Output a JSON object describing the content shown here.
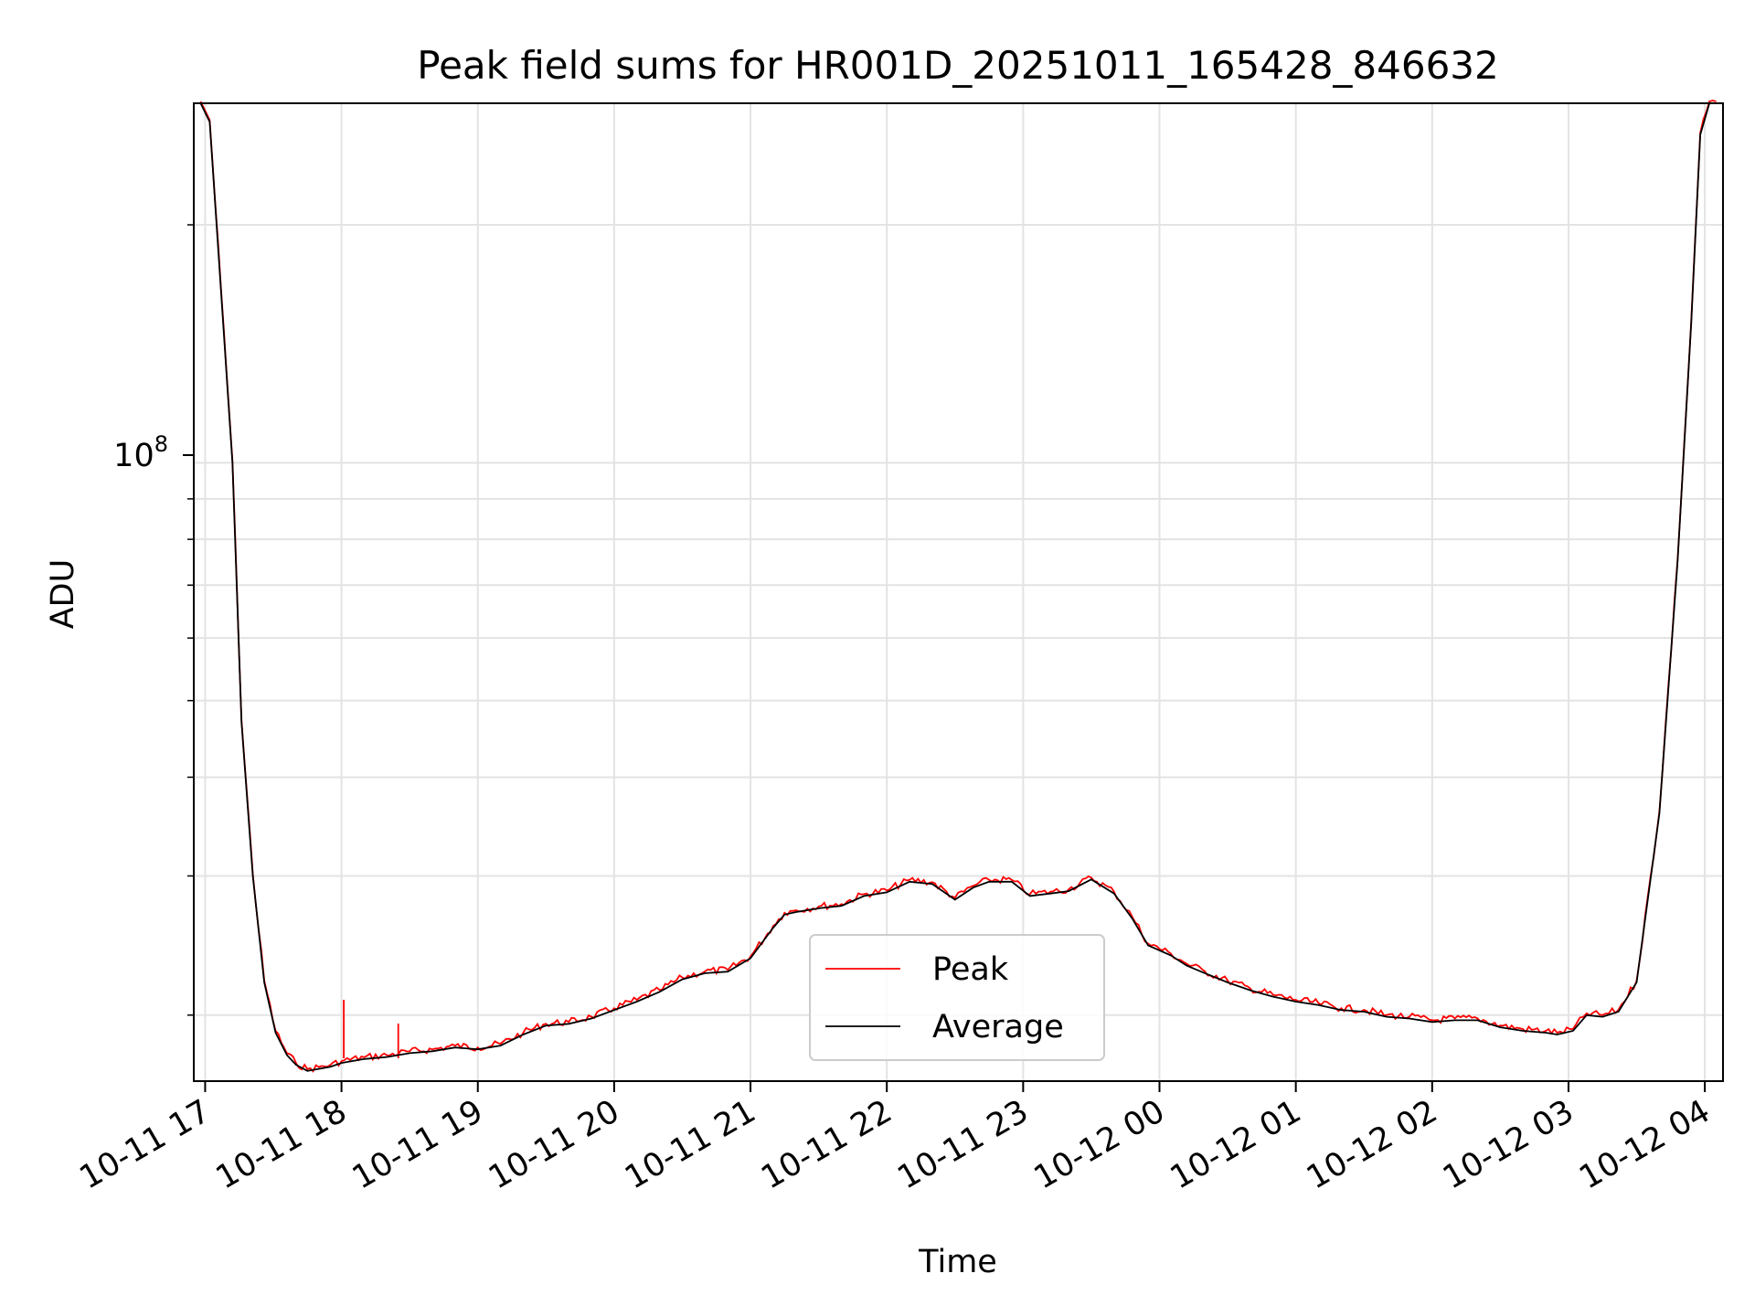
{
  "chart_data": {
    "type": "line",
    "title": "Peak field sums for HR001D_20251011_165428_846632",
    "xlabel": "Time",
    "ylabel": "ADU",
    "y_scale": "log",
    "y_tick_label": "10",
    "y_tick_exponent": "8",
    "ylim": [
      16500000,
      285000000
    ],
    "xlim": [
      "2025-10-11 16:55",
      "2025-10-12 04:08"
    ],
    "grid": true,
    "legend_position": "lower-center",
    "x_ticks": [
      {
        "time": "2025-10-11 17:00",
        "label": "10-11 17"
      },
      {
        "time": "2025-10-11 18:00",
        "label": "10-11 18"
      },
      {
        "time": "2025-10-11 19:00",
        "label": "10-11 19"
      },
      {
        "time": "2025-10-11 20:00",
        "label": "10-11 20"
      },
      {
        "time": "2025-10-11 21:00",
        "label": "10-11 21"
      },
      {
        "time": "2025-10-11 22:00",
        "label": "10-11 22"
      },
      {
        "time": "2025-10-11 23:00",
        "label": "10-11 23"
      },
      {
        "time": "2025-10-12 00:00",
        "label": "10-12 00"
      },
      {
        "time": "2025-10-12 01:00",
        "label": "10-12 01"
      },
      {
        "time": "2025-10-12 02:00",
        "label": "10-12 02"
      },
      {
        "time": "2025-10-12 03:00",
        "label": "10-12 03"
      },
      {
        "time": "2025-10-12 04:00",
        "label": "10-12 04"
      }
    ],
    "series": [
      {
        "name": "Peak",
        "color": "#ff0000"
      },
      {
        "name": "Average",
        "color": "#000000"
      }
    ],
    "x": [
      "2025-10-11 16:58",
      "2025-10-11 17:02",
      "2025-10-11 17:07",
      "2025-10-11 17:12",
      "2025-10-11 17:16",
      "2025-10-11 17:21",
      "2025-10-11 17:26",
      "2025-10-11 17:31",
      "2025-10-11 17:36",
      "2025-10-11 17:40",
      "2025-10-11 17:45",
      "2025-10-11 17:50",
      "2025-10-11 17:55",
      "2025-10-11 18:00",
      "2025-10-11 18:10",
      "2025-10-11 18:20",
      "2025-10-11 18:30",
      "2025-10-11 18:40",
      "2025-10-11 18:50",
      "2025-10-11 19:00",
      "2025-10-11 19:10",
      "2025-10-11 19:20",
      "2025-10-11 19:30",
      "2025-10-11 19:40",
      "2025-10-11 19:50",
      "2025-10-11 20:00",
      "2025-10-11 20:10",
      "2025-10-11 20:20",
      "2025-10-11 20:30",
      "2025-10-11 20:40",
      "2025-10-11 20:50",
      "2025-10-11 21:00",
      "2025-10-11 21:10",
      "2025-10-11 21:15",
      "2025-10-11 21:20",
      "2025-10-11 21:30",
      "2025-10-11 21:40",
      "2025-10-11 21:50",
      "2025-10-11 22:00",
      "2025-10-11 22:10",
      "2025-10-11 22:20",
      "2025-10-11 22:30",
      "2025-10-11 22:38",
      "2025-10-11 22:45",
      "2025-10-11 22:55",
      "2025-10-11 23:03",
      "2025-10-11 23:12",
      "2025-10-11 23:20",
      "2025-10-11 23:30",
      "2025-10-11 23:40",
      "2025-10-11 23:48",
      "2025-10-11 23:55",
      "2025-10-12 00:05",
      "2025-10-12 00:12",
      "2025-10-12 00:20",
      "2025-10-12 00:30",
      "2025-10-12 00:40",
      "2025-10-12 00:50",
      "2025-10-12 01:00",
      "2025-10-12 01:10",
      "2025-10-12 01:20",
      "2025-10-12 01:30",
      "2025-10-12 01:40",
      "2025-10-12 01:50",
      "2025-10-12 02:00",
      "2025-10-12 02:10",
      "2025-10-12 02:20",
      "2025-10-12 02:30",
      "2025-10-12 02:40",
      "2025-10-12 02:50",
      "2025-10-12 02:55",
      "2025-10-12 03:02",
      "2025-10-12 03:08",
      "2025-10-12 03:15",
      "2025-10-12 03:22",
      "2025-10-12 03:30",
      "2025-10-12 03:40",
      "2025-10-12 03:48",
      "2025-10-12 03:54",
      "2025-10-12 03:58",
      "2025-10-12 04:02",
      "2025-10-12 04:05"
    ],
    "y": [
      285000000,
      270000000,
      165000000,
      100000000,
      47000000,
      30000000,
      22000000,
      19000000,
      17800000,
      17300000,
      17000000,
      17100000,
      17200000,
      17400000,
      17600000,
      17700000,
      17900000,
      18000000,
      18200000,
      18100000,
      18300000,
      18900000,
      19400000,
      19500000,
      19800000,
      20300000,
      20800000,
      21400000,
      22200000,
      22600000,
      22700000,
      23600000,
      25800000,
      26800000,
      27000000,
      27300000,
      27500000,
      28300000,
      28600000,
      29500000,
      29300000,
      28000000,
      29000000,
      29500000,
      29500000,
      28300000,
      28500000,
      28700000,
      29700000,
      28500000,
      26500000,
      24500000,
      23800000,
      23100000,
      22600000,
      22000000,
      21500000,
      21100000,
      20800000,
      20600000,
      20300000,
      20200000,
      19900000,
      19800000,
      19600000,
      19700000,
      19700000,
      19300000,
      19100000,
      19000000,
      18900000,
      19100000,
      20000000,
      19900000,
      20200000,
      22000000,
      36000000,
      75000000,
      150000000,
      260000000,
      285000000,
      285000000
    ]
  }
}
